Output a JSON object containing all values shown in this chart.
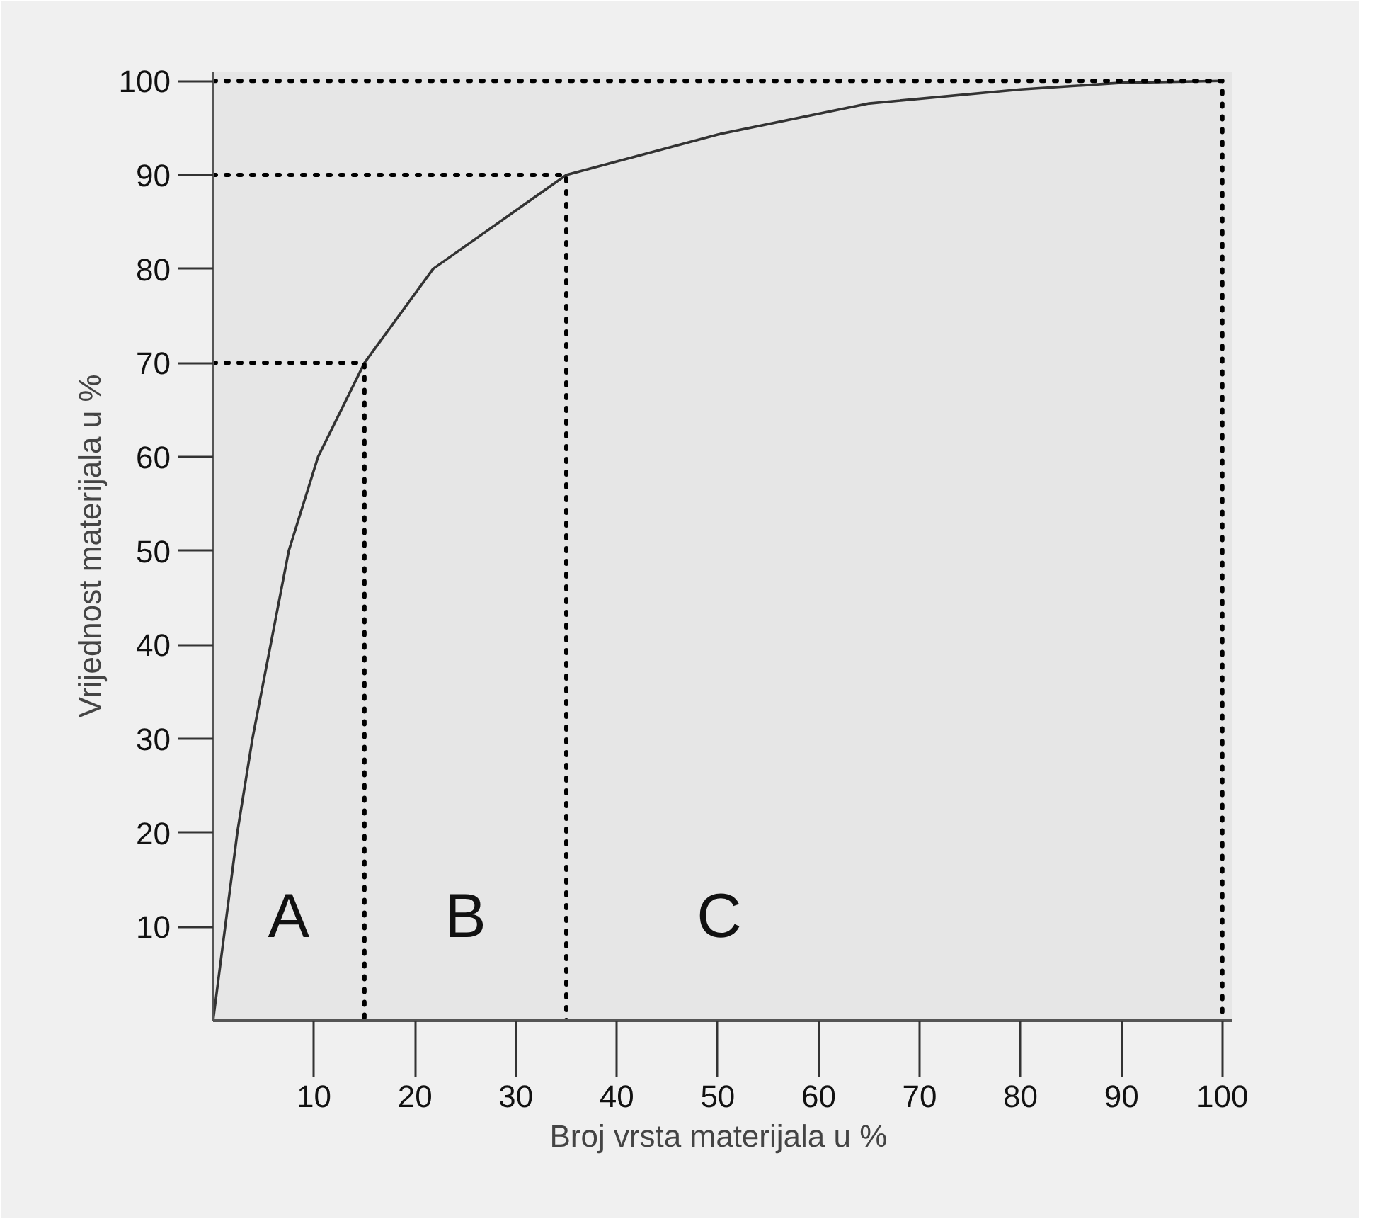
{
  "chart_data": {
    "type": "line",
    "xlabel": "Broj vrsta materijala  u %",
    "ylabel": "Vrijednost materijala u %",
    "xlim": [
      0,
      101
    ],
    "ylim": [
      0,
      101
    ],
    "xticks": [
      10,
      20,
      30,
      40,
      50,
      60,
      70,
      80,
      90,
      100
    ],
    "yticks": [
      10,
      20,
      30,
      40,
      50,
      60,
      70,
      80,
      90,
      100
    ],
    "series": [
      {
        "color": "#333333",
        "x": [
          0,
          2.4,
          3.9,
          5.7,
          7.5,
          10.4,
          15,
          21.8,
          35,
          50,
          65,
          80,
          90,
          100
        ],
        "values": [
          0,
          20,
          30,
          40,
          50,
          60,
          70,
          80,
          90,
          94.3,
          97.6,
          99.1,
          99.8,
          100
        ]
      },
      {
        "color": "#000000",
        "line_style": "dotted",
        "x": [
          0,
          15,
          15
        ],
        "values": [
          70,
          70,
          0
        ]
      },
      {
        "color": "#000000",
        "line_style": "dotted",
        "x": [
          0,
          35,
          35
        ],
        "values": [
          90,
          90,
          0
        ]
      },
      {
        "color": "#000000",
        "line_style": "dotted",
        "x": [
          0,
          100,
          100
        ],
        "values": [
          100,
          100,
          0
        ]
      }
    ],
    "annotations": [
      "A",
      "B",
      "C"
    ]
  }
}
